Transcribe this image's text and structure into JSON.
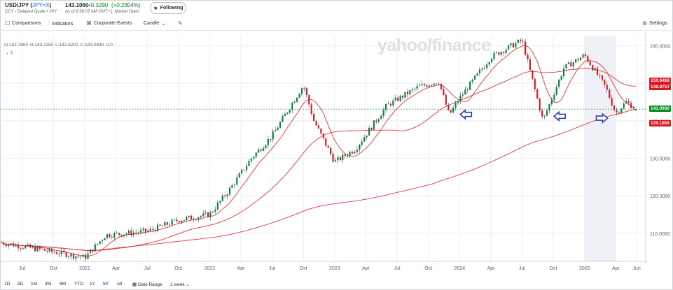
{
  "header": {
    "symbol_prefix": "USD/JPY (",
    "ticker": "JPY=X",
    "symbol_suffix": ")",
    "source": "CCY - Delayed Quote • JPY",
    "price": "143.1060",
    "change": "+0.3290",
    "change_pct": "(+0.2304%)",
    "as_of": "As of 6:36:07 AM GMT+1. Market Open.",
    "follow_label": "Following"
  },
  "toolbar": {
    "comparisons": "Comparisons",
    "indicators": "Indicators",
    "corporate_events": "Corporate Events",
    "chart_type": "Candle",
    "settings": "Settings"
  },
  "ohlc": {
    "o": "O:142.7800",
    "h": "H:143.1150",
    "l": "L:142.5200",
    "c": "C:143.0930",
    "v": "V:0"
  },
  "indicator_count": "8",
  "watermark": "yahoo/finance",
  "range_bar": {
    "ranges": [
      "1D",
      "5D",
      "1M",
      "3M",
      "6M",
      "YTD",
      "1Y",
      "5Y",
      "All"
    ],
    "active": "5Y",
    "date_range": "Date Range",
    "interval": "1 week"
  },
  "price_tags": [
    {
      "label": "150.6468",
      "value": 150.6468,
      "color": "#e0141e"
    },
    {
      "label": "148.9757",
      "value": 148.9757,
      "color": "#e0141e"
    },
    {
      "label": "143.0930",
      "value": 143.093,
      "color": "#008a1e"
    },
    {
      "label": "139.1858",
      "value": 139.1858,
      "color": "#e0141e"
    }
  ],
  "chart_data": {
    "type": "candlestick",
    "title": "USD/JPY (JPY=X)",
    "interval": "1 week",
    "range": "5Y",
    "y_ticks": [
      110,
      120,
      130,
      140,
      150,
      160
    ],
    "y_tick_labels": [
      "110.0000",
      "120.0000",
      "130.0000",
      "140.0000",
      "150.0000",
      "160.0000"
    ],
    "ylim": [
      102.5,
      162.5
    ],
    "x_ticks": [
      "Jul",
      "Oct",
      "2021",
      "Apr",
      "Jul",
      "Oct",
      "2022",
      "Apr",
      "Jul",
      "Oct",
      "2023",
      "Apr",
      "Jul",
      "Oct",
      "2024",
      "Apr",
      "Jul",
      "Oct",
      "2025",
      "Apr",
      "Jun"
    ],
    "x_tick_dates": [
      "2020-07",
      "2020-10",
      "2021-01",
      "2021-04",
      "2021-07",
      "2021-10",
      "2022-01",
      "2022-04",
      "2022-07",
      "2022-10",
      "2023-01",
      "2023-04",
      "2023-07",
      "2023-10",
      "2024-01",
      "2024-04",
      "2024-07",
      "2024-10",
      "2025-01",
      "2025-04",
      "2025-06"
    ],
    "xlim": [
      "2020-05",
      "2025-06"
    ],
    "price_key_points": [
      {
        "date": "2020-05",
        "close": 107.5
      },
      {
        "date": "2020-07",
        "close": 106.5
      },
      {
        "date": "2020-10",
        "close": 105.0
      },
      {
        "date": "2021-01",
        "close": 103.5
      },
      {
        "date": "2021-03",
        "close": 109.5
      },
      {
        "date": "2021-07",
        "close": 110.5
      },
      {
        "date": "2021-10",
        "close": 113.5
      },
      {
        "date": "2022-01",
        "close": 115.0
      },
      {
        "date": "2022-03",
        "close": 122.0
      },
      {
        "date": "2022-05",
        "close": 130.0
      },
      {
        "date": "2022-07",
        "close": 136.0
      },
      {
        "date": "2022-10",
        "close": 149.5
      },
      {
        "date": "2022-11",
        "close": 140.0
      },
      {
        "date": "2023-01",
        "close": 129.0
      },
      {
        "date": "2023-03",
        "close": 132.5
      },
      {
        "date": "2023-06",
        "close": 144.0
      },
      {
        "date": "2023-09",
        "close": 149.0
      },
      {
        "date": "2023-11",
        "close": 150.5
      },
      {
        "date": "2023-12",
        "close": 141.5
      },
      {
        "date": "2024-01",
        "close": 146.0
      },
      {
        "date": "2024-04",
        "close": 157.0
      },
      {
        "date": "2024-07",
        "close": 161.5
      },
      {
        "date": "2024-09",
        "close": 140.0
      },
      {
        "date": "2024-11",
        "close": 154.0
      },
      {
        "date": "2025-01",
        "close": 157.5
      },
      {
        "date": "2025-03",
        "close": 149.0
      },
      {
        "date": "2025-04",
        "close": 142.0
      },
      {
        "date": "2025-05",
        "close": 145.0
      },
      {
        "date": "2025-06",
        "close": 143.09
      }
    ],
    "moving_averages": [
      {
        "name": "short",
        "color": "#e0141e"
      },
      {
        "name": "medium",
        "color": "#e0141e"
      },
      {
        "name": "long",
        "color": "#e0141e"
      }
    ],
    "annotations": [
      {
        "type": "arrow",
        "direction": "left",
        "date": "2024-01",
        "value": 141.5,
        "color": "#2b3fb0"
      },
      {
        "type": "arrow",
        "direction": "left",
        "date": "2024-10",
        "value": 141.0,
        "color": "#2b3fb0"
      },
      {
        "type": "arrow",
        "direction": "right",
        "date": "2025-03",
        "value": 140.5,
        "color": "#2b3fb0"
      }
    ],
    "highlight_band": {
      "from": "2025-01",
      "to": "2025-04",
      "color": "#eef1f6"
    },
    "grid": true
  }
}
